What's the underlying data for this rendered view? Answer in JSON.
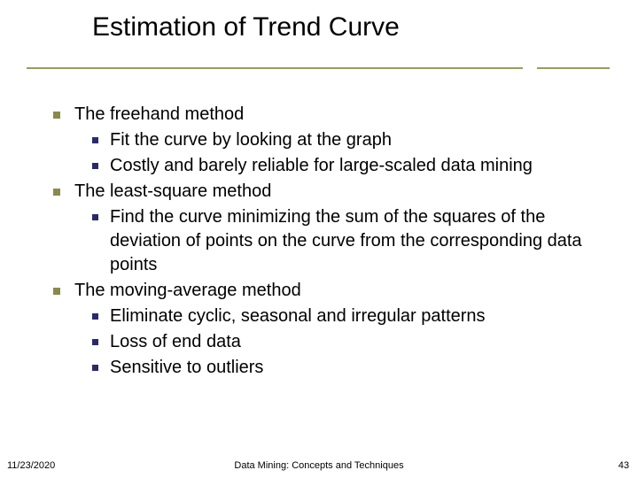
{
  "title": "Estimation of Trend Curve",
  "accent_line_color": "#9a9a60",
  "bullet_l1_color": "#8a8a4a",
  "bullet_l2_color": "#2a2a6a",
  "body_font_size_pt": 20,
  "title_font_size_pt": 30,
  "sections": [
    {
      "heading": "The freehand method",
      "items": [
        "Fit the curve by looking at the graph",
        "Costly and barely reliable for large-scaled data mining"
      ]
    },
    {
      "heading": "The least-square method",
      "items": [
        "Find the curve minimizing the sum of the squares of the deviation of points on the curve from the corresponding data points"
      ]
    },
    {
      "heading": "The moving-average method",
      "items": [
        "Eliminate cyclic, seasonal and irregular patterns",
        " Loss of end data",
        "Sensitive to outliers"
      ]
    }
  ],
  "footer": {
    "date": "11/23/2020",
    "center": "Data Mining: Concepts and Techniques",
    "page": "43"
  }
}
